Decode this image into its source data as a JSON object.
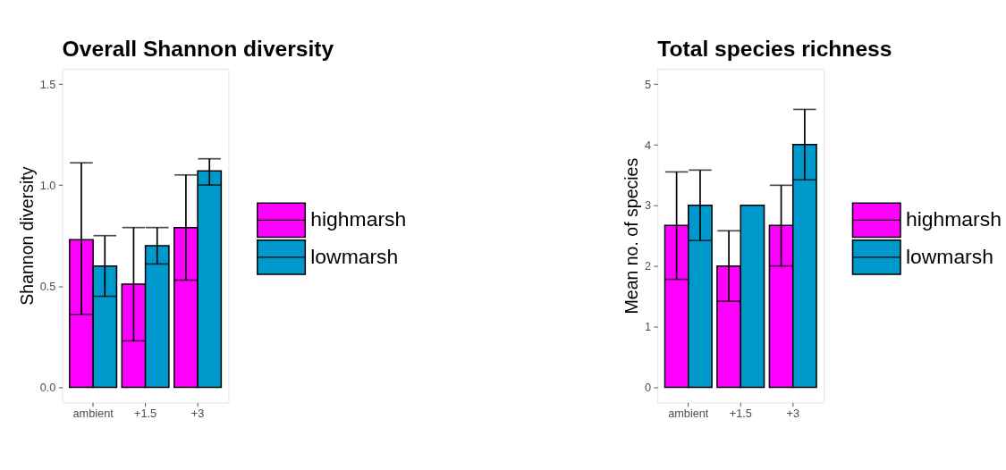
{
  "chart_data": [
    {
      "type": "bar",
      "title": "Overall Shannon diversity",
      "ylabel": "Shannon diversity",
      "categories": [
        "ambient",
        "+1.5",
        "+3"
      ],
      "series": [
        {
          "name": "highmarsh",
          "color": "#ff00ff",
          "values": [
            0.73,
            0.51,
            0.79
          ],
          "errors": [
            [
              0.36,
              1.11
            ],
            [
              0.23,
              0.79
            ],
            [
              0.53,
              1.05
            ]
          ]
        },
        {
          "name": "lowmarsh",
          "color": "#0099cc",
          "values": [
            0.6,
            0.7,
            1.07
          ],
          "errors": [
            [
              0.45,
              0.75
            ],
            [
              0.61,
              0.79
            ],
            [
              1.0,
              1.13
            ]
          ]
        }
      ],
      "ylim": [
        -0.075,
        1.575
      ],
      "yticks": [
        {
          "value": 0,
          "label": "0.0"
        },
        0.5,
        {
          "value": 1,
          "label": "1.0"
        },
        1.5
      ],
      "grid": false,
      "legend": "right"
    },
    {
      "type": "bar",
      "title": "Total species richness",
      "ylabel": "Mean no. of species",
      "categories": [
        "ambient",
        "+1.5",
        "+3"
      ],
      "series": [
        {
          "name": "highmarsh",
          "color": "#ff00ff",
          "values": [
            2.67,
            2.0,
            2.67
          ],
          "errors": [
            [
              1.78,
              3.55
            ],
            [
              1.42,
              2.58
            ],
            [
              2.0,
              3.33
            ]
          ]
        },
        {
          "name": "lowmarsh",
          "color": "#0099cc",
          "values": [
            3.0,
            3.0,
            4.0
          ],
          "errors": [
            [
              2.42,
              3.58
            ],
            null,
            [
              3.42,
              4.58
            ]
          ]
        }
      ],
      "ylim": [
        -0.25,
        5.25
      ],
      "yticks": [
        0,
        1,
        2,
        3,
        4,
        5
      ],
      "grid": false,
      "legend": "right"
    }
  ]
}
